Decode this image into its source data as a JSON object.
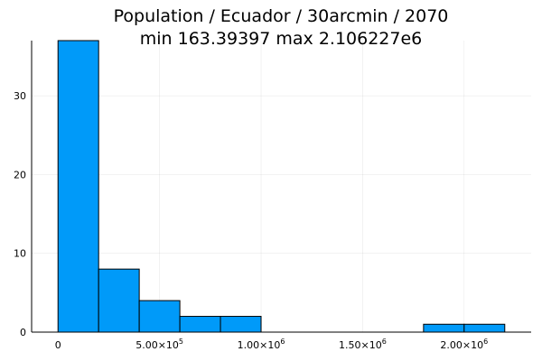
{
  "chart_data": {
    "type": "bar",
    "title": "Population / Ecuador / 30arcmin / 2070",
    "subtitle": "min 163.39397  max 2.106227e6",
    "xlabel": "",
    "ylabel": "",
    "bins": [
      {
        "x0": 0,
        "x1": 200000,
        "count": 37
      },
      {
        "x0": 200000,
        "x1": 400000,
        "count": 8
      },
      {
        "x0": 400000,
        "x1": 600000,
        "count": 4
      },
      {
        "x0": 600000,
        "x1": 800000,
        "count": 2
      },
      {
        "x0": 800000,
        "x1": 1000000,
        "count": 2
      },
      {
        "x0": 1000000,
        "x1": 1200000,
        "count": 0
      },
      {
        "x0": 1200000,
        "x1": 1400000,
        "count": 0
      },
      {
        "x0": 1400000,
        "x1": 1600000,
        "count": 0
      },
      {
        "x0": 1600000,
        "x1": 1800000,
        "count": 0
      },
      {
        "x0": 1800000,
        "x1": 2000000,
        "count": 1
      },
      {
        "x0": 2000000,
        "x1": 2200000,
        "count": 1
      }
    ],
    "xlim": [
      -130000,
      2330000
    ],
    "ylim": [
      0,
      37
    ],
    "x_ticks": [
      {
        "value": 0,
        "mantissa": "0",
        "exponent": ""
      },
      {
        "value": 500000,
        "mantissa": "5.00×10",
        "exponent": "5"
      },
      {
        "value": 1000000,
        "mantissa": "1.00×10",
        "exponent": "6"
      },
      {
        "value": 1500000,
        "mantissa": "1.50×10",
        "exponent": "6"
      },
      {
        "value": 2000000,
        "mantissa": "2.00×10",
        "exponent": "6"
      }
    ],
    "y_ticks": [
      {
        "value": 0,
        "label": "0"
      },
      {
        "value": 10,
        "label": "10"
      },
      {
        "value": 20,
        "label": "20"
      },
      {
        "value": 30,
        "label": "30"
      }
    ],
    "grid": true,
    "legend": "none",
    "colors": {
      "bar": "#009AF9",
      "edge": "#000000"
    }
  }
}
